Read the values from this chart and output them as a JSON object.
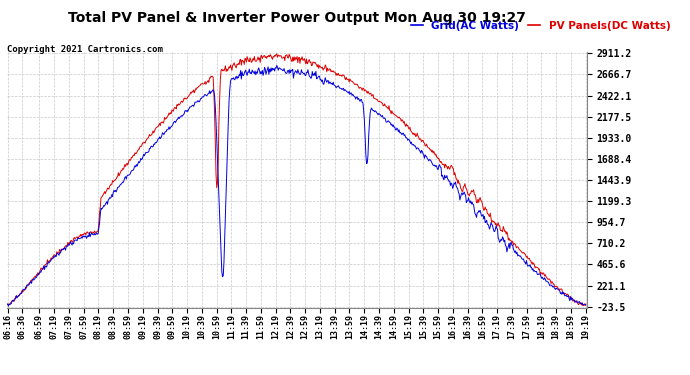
{
  "title": "Total PV Panel & Inverter Power Output Mon Aug 30 19:27",
  "copyright": "Copyright 2021 Cartronics.com",
  "legend_blue": "Grid(AC Watts)",
  "legend_red": "PV Panels(DC Watts)",
  "yticks": [
    2911.2,
    2666.7,
    2422.1,
    2177.5,
    1933.0,
    1688.4,
    1443.9,
    1199.3,
    954.7,
    710.2,
    465.6,
    221.1,
    -23.5
  ],
  "ymin": -23.5,
  "ymax": 2911.2,
  "background_color": "#ffffff",
  "grid_color": "#bbbbbb",
  "title_color": "#000000",
  "blue_color": "#0000dd",
  "red_color": "#dd0000",
  "x_tick_labels": [
    "06:16",
    "06:36",
    "06:59",
    "07:19",
    "07:39",
    "07:59",
    "08:19",
    "08:39",
    "08:59",
    "09:19",
    "09:39",
    "09:59",
    "10:19",
    "10:39",
    "10:59",
    "11:19",
    "11:39",
    "11:59",
    "12:19",
    "12:39",
    "12:59",
    "13:19",
    "13:39",
    "13:59",
    "14:19",
    "14:39",
    "14:59",
    "15:19",
    "15:39",
    "15:59",
    "16:19",
    "16:39",
    "16:59",
    "17:19",
    "17:39",
    "17:59",
    "18:19",
    "18:39",
    "18:59",
    "19:19"
  ]
}
